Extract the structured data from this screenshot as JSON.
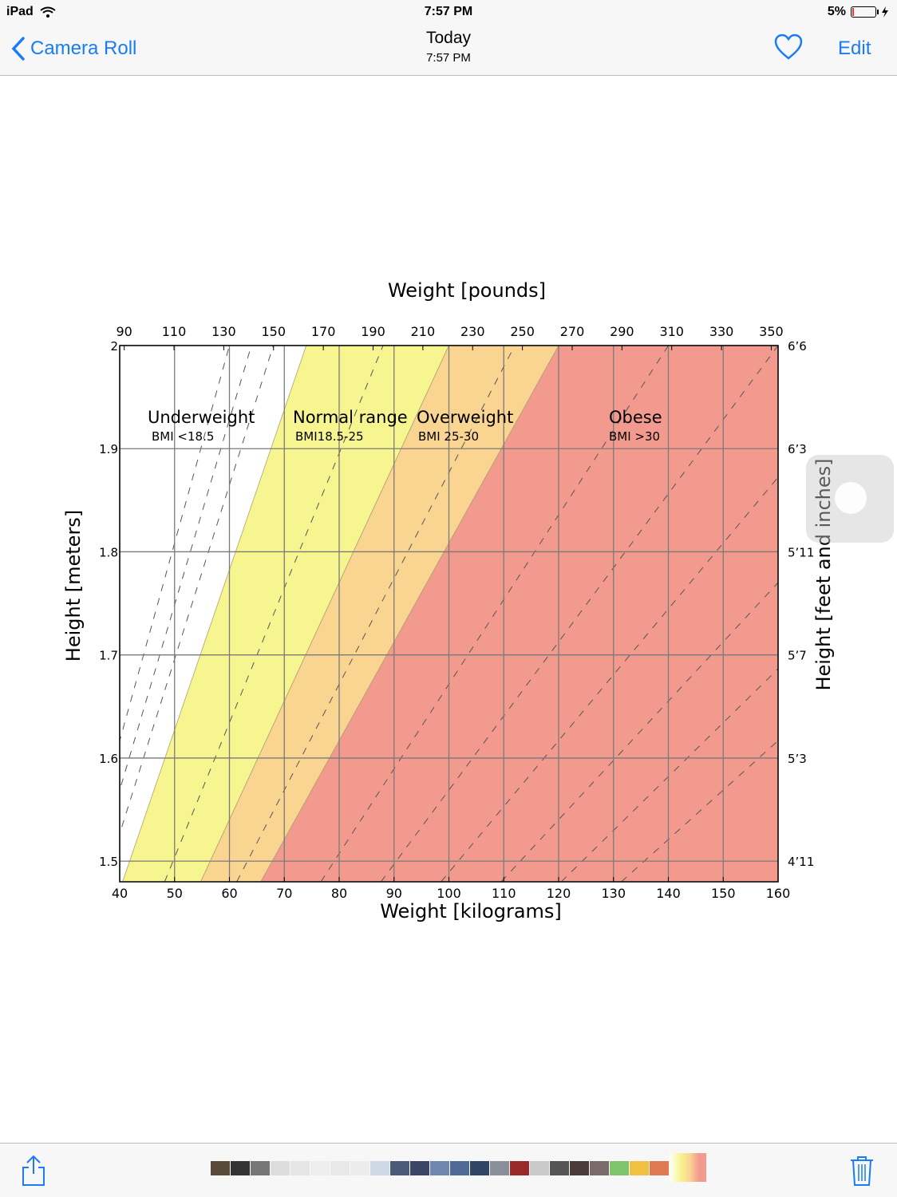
{
  "status": {
    "device": "iPad",
    "time": "7:57 PM",
    "battery": "5%"
  },
  "nav": {
    "back_label": "Camera Roll",
    "title": "Today",
    "subtitle": "7:57 PM",
    "edit_label": "Edit"
  },
  "colors": {
    "accent": "#1a7cf5",
    "underweight": "#ffffff",
    "normal": "#f7f58f",
    "overweight": "#fad592",
    "obese": "#f39a8e"
  },
  "icons": {
    "back": "chevron-left-icon",
    "favorite": "heart-icon",
    "share": "share-icon",
    "trash": "trash-icon"
  },
  "chart_data": {
    "type": "area",
    "top_axis_label": "Weight [pounds]",
    "xlabel": "Weight [kilograms]",
    "ylabel": "Height [meters]",
    "right_axis_label": "Height [feet and inches]",
    "x_ticks": [
      40,
      50,
      60,
      70,
      80,
      90,
      100,
      110,
      120,
      130,
      140,
      150,
      160
    ],
    "top_ticks": [
      90,
      110,
      130,
      150,
      170,
      190,
      210,
      230,
      250,
      270,
      290,
      310,
      330,
      350
    ],
    "y_ticks": [
      "1.5",
      "1.6",
      "1.7",
      "1.8",
      "1.9",
      "2"
    ],
    "right_ticks": [
      {
        "label": "4’11",
        "h": 1.5
      },
      {
        "label": "5’3",
        "h": 1.6
      },
      {
        "label": "5’7",
        "h": 1.7
      },
      {
        "label": "5’11",
        "h": 1.8
      },
      {
        "label": "6’3",
        "h": 1.9
      },
      {
        "label": "6’6",
        "h": 2.0
      }
    ],
    "xlim": [
      40,
      160
    ],
    "ylim": [
      1.48,
      2.0
    ],
    "bmi_boundaries": [
      18.5,
      25,
      30
    ],
    "dashed_bmi_lines": [
      15,
      16,
      17,
      22,
      28,
      35,
      40,
      45,
      50,
      55,
      60
    ],
    "categories": [
      {
        "name": "Underweight",
        "range": "BMI <18.5"
      },
      {
        "name": "Normal range",
        "range": "BMI18.5-25"
      },
      {
        "name": "Overweight",
        "range": "BMI 25-30"
      },
      {
        "name": "Obese",
        "range": "BMI >30"
      }
    ],
    "grid": true
  }
}
